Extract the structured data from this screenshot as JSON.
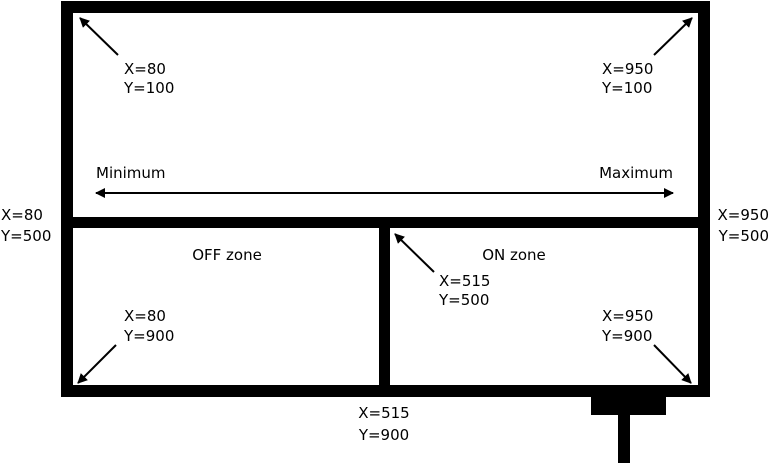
{
  "colors": {
    "stroke": "#000000",
    "background": "#ffffff"
  },
  "top_panel": {
    "top_left": {
      "x": "X=80",
      "y": "Y=100"
    },
    "top_right": {
      "x": "X=950",
      "y": "Y=100"
    },
    "min_label": "Minimum",
    "max_label": "Maximum"
  },
  "side_labels": {
    "left": {
      "x": "X=80",
      "y": "Y=500"
    },
    "right": {
      "x": "X=950",
      "y": "Y=500"
    }
  },
  "off_zone": {
    "title": "OFF zone",
    "bottom_left": {
      "x": "X=80",
      "y": "Y=900"
    }
  },
  "on_zone": {
    "title": "ON zone",
    "top_left": {
      "x": "X=515",
      "y": "Y=500"
    },
    "bottom_right": {
      "x": "X=950",
      "y": "Y=900"
    }
  },
  "bottom_label": {
    "x": "X=515",
    "y": "Y=900"
  }
}
